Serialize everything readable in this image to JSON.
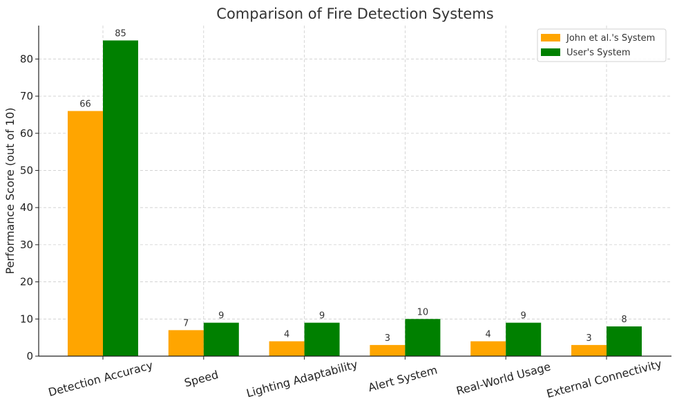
{
  "chart_data": {
    "type": "bar",
    "title": "Comparison of Fire Detection Systems",
    "xlabel": "",
    "ylabel": "Performance Score (out of 10)",
    "ylim": [
      0,
      89
    ],
    "yticks": [
      0,
      10,
      20,
      30,
      40,
      50,
      60,
      70,
      80
    ],
    "grid": true,
    "legend_position": "top-right",
    "categories": [
      "Detection Accuracy",
      "Speed",
      "Lighting Adaptability",
      "Alert System",
      "Real-World Usage",
      "External Connectivity"
    ],
    "series": [
      {
        "name": "John et al.'s System",
        "color": "#FFA500",
        "values": [
          66,
          7,
          4,
          3,
          4,
          3
        ]
      },
      {
        "name": "User's System",
        "color": "#008000",
        "values": [
          85,
          9,
          9,
          10,
          9,
          8
        ]
      }
    ]
  }
}
